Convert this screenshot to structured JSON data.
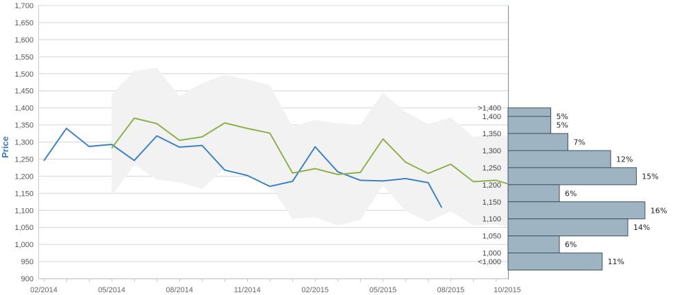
{
  "chart_data": {
    "type": "line",
    "ylabel": "Price",
    "ylim": [
      900,
      1700
    ],
    "y_ticks": [
      "900",
      "950",
      "1,000",
      "1,050",
      "1,100",
      "1,150",
      "1,200",
      "1,250",
      "1,300",
      "1,350",
      "1,400",
      "1,450",
      "1,500",
      "1,550",
      "1,600",
      "1,650",
      "1,700"
    ],
    "x_ticks": [
      {
        "label": "02/2014",
        "t": 0
      },
      {
        "label": "05/2014",
        "t": 3
      },
      {
        "label": "08/2014",
        "t": 6
      },
      {
        "label": "11/2014",
        "t": 9
      },
      {
        "label": "02/2015",
        "t": 12
      },
      {
        "label": "05/2015",
        "t": 15
      },
      {
        "label": "08/2015",
        "t": 18
      },
      {
        "label": "10/2015",
        "t": 20.5
      }
    ],
    "series": [
      {
        "color": "#3a80c8",
        "x": [
          0,
          1,
          2,
          3,
          4,
          5,
          6,
          7,
          8,
          9,
          10,
          11,
          12,
          13,
          14,
          15,
          16,
          17,
          17.6
        ],
        "values": [
          1245,
          1340,
          1287,
          1293,
          1246,
          1318,
          1285,
          1290,
          1218,
          1202,
          1170,
          1185,
          1286,
          1213,
          1188,
          1186,
          1193,
          1181,
          1108
        ]
      },
      {
        "color": "#8db04a",
        "x": [
          3,
          4,
          5,
          6,
          7,
          8,
          9,
          10,
          11,
          12,
          13,
          14,
          15,
          16,
          17,
          18,
          19,
          20,
          20.5
        ],
        "values": [
          1282,
          1370,
          1354,
          1305,
          1315,
          1356,
          1340,
          1326,
          1209,
          1222,
          1205,
          1211,
          1309,
          1241,
          1208,
          1235,
          1184,
          1188,
          1178
        ]
      }
    ],
    "band": {
      "color": "#f2f2f2",
      "x": [
        3,
        4,
        5,
        6,
        7,
        8,
        9,
        10,
        11,
        12,
        13,
        14,
        15,
        16,
        17,
        18,
        19,
        20,
        20.5
      ],
      "upper": [
        1440,
        1508,
        1518,
        1435,
        1472,
        1497,
        1483,
        1467,
        1345,
        1365,
        1355,
        1350,
        1445,
        1388,
        1353,
        1372,
        1315,
        1325,
        1318
      ],
      "lower": [
        1140,
        1234,
        1190,
        1182,
        1162,
        1226,
        1202,
        1175,
        1075,
        1080,
        1055,
        1072,
        1172,
        1098,
        1066,
        1097,
        1055,
        1060,
        1052
      ]
    },
    "histogram": {
      "color": "#9fb4c2",
      "bins": [
        {
          "label": ">1,400",
          "center": 1400,
          "percent": 5,
          "text": "5%"
        },
        {
          "label": "1,400",
          "center": 1375,
          "percent": 5,
          "text": "5%"
        },
        {
          "label": "1,350",
          "center": 1325,
          "percent": 7,
          "text": "7%"
        },
        {
          "label": "1,300",
          "center": 1275,
          "percent": 12,
          "text": "12%"
        },
        {
          "label": "1,250",
          "center": 1225,
          "percent": 15,
          "text": "15%"
        },
        {
          "label": "1,200",
          "center": 1175,
          "percent": 6,
          "text": "6%"
        },
        {
          "label": "1,150",
          "center": 1125,
          "percent": 16,
          "text": "16%"
        },
        {
          "label": "1,100",
          "center": 1075,
          "percent": 14,
          "text": "14%"
        },
        {
          "label": "1,050",
          "center": 1025,
          "percent": 6,
          "text": "6%"
        },
        {
          "label": "1,000",
          "center": 975,
          "percent": 11,
          "text": "11%"
        },
        {
          "label": "<1,000",
          "center": 950,
          "percent": null,
          "text": ""
        }
      ]
    }
  }
}
